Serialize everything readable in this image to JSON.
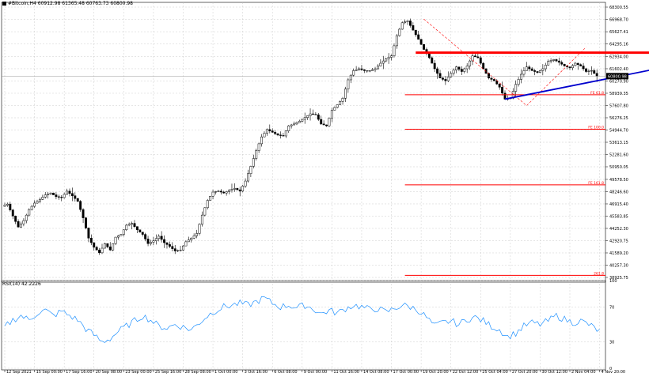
{
  "header": {
    "symbol": "#Bitcoin,H4",
    "ohlc": "60912.98 61365.48 60763.73 60800.98"
  },
  "rsi_panel": {
    "label": "RSI(14) 42.2226"
  },
  "colors": {
    "background": "#ffffff",
    "grid": "#c0c0c0",
    "candle": "#000000",
    "rsi_line": "#1e90ff",
    "resistance": "#ff0000",
    "trendline": "#0000cd",
    "fib": "#ff0000",
    "zigzag": "#ff0000"
  },
  "chart_data": [
    {
      "type": "candlestick",
      "title": "#Bitcoin,H4",
      "y_ticks": [
        "68300.55",
        "66968.70",
        "65627.41",
        "64295.16",
        "62934.00",
        "61602.40",
        "60270.90",
        "58939.35",
        "57607.80",
        "56276.25",
        "54944.70",
        "53613.15",
        "52281.60",
        "50950.05",
        "49578.50",
        "48246.60",
        "46915.40",
        "45583.85",
        "44252.30",
        "42920.75",
        "41589.20",
        "40257.30",
        "38925.75"
      ],
      "x_ticks": [
        "12 Sep 2021",
        "15 Sep 00:00",
        "17 Sep 16:00",
        "20 Sep 08:00",
        "23 Sep 00:00",
        "25 Sep 16:00",
        "28 Sep 08:00",
        "1 Oct 00:00",
        "3 Oct 16:00",
        "6 Oct 08:00",
        "9 Oct 00:00",
        "11 Oct 16:00",
        "14 Oct 08:00",
        "17 Oct 00:00",
        "19 Oct 20:00",
        "22 Oct 12:00",
        "25 Oct 04:00",
        "27 Oct 20:00",
        "30 Oct 12:00",
        "2 Nov 04:00",
        "4 Nov 20:00"
      ],
      "ylim": [
        38925.75,
        68300.55
      ],
      "current_price_label": "60800.98",
      "price_path": [
        [
          0,
          46650
        ],
        [
          2,
          46900
        ],
        [
          4,
          45600
        ],
        [
          6,
          44400
        ],
        [
          8,
          45100
        ],
        [
          10,
          46300
        ],
        [
          12,
          47000
        ],
        [
          14,
          47400
        ],
        [
          16,
          47900
        ],
        [
          18,
          48100
        ],
        [
          20,
          47700
        ],
        [
          22,
          47600
        ],
        [
          24,
          48300
        ],
        [
          26,
          47800
        ],
        [
          28,
          47200
        ],
        [
          30,
          45400
        ],
        [
          32,
          43200
        ],
        [
          34,
          42200
        ],
        [
          36,
          41600
        ],
        [
          38,
          42600
        ],
        [
          40,
          41900
        ],
        [
          42,
          43300
        ],
        [
          44,
          43600
        ],
        [
          46,
          44600
        ],
        [
          48,
          44800
        ],
        [
          50,
          44100
        ],
        [
          52,
          43600
        ],
        [
          54,
          42600
        ],
        [
          56,
          42900
        ],
        [
          58,
          43400
        ],
        [
          60,
          42700
        ],
        [
          62,
          42300
        ],
        [
          64,
          41800
        ],
        [
          66,
          41900
        ],
        [
          68,
          42800
        ],
        [
          70,
          43200
        ],
        [
          72,
          43700
        ],
        [
          74,
          45700
        ],
        [
          76,
          47300
        ],
        [
          78,
          48200
        ],
        [
          80,
          48300
        ],
        [
          82,
          48100
        ],
        [
          84,
          48400
        ],
        [
          86,
          48600
        ],
        [
          88,
          48300
        ],
        [
          90,
          49400
        ],
        [
          92,
          51000
        ],
        [
          94,
          52700
        ],
        [
          96,
          54200
        ],
        [
          98,
          55000
        ],
        [
          100,
          54700
        ],
        [
          102,
          54400
        ],
        [
          104,
          54300
        ],
        [
          106,
          55400
        ],
        [
          108,
          55600
        ],
        [
          110,
          55900
        ],
        [
          112,
          56300
        ],
        [
          114,
          56700
        ],
        [
          116,
          56600
        ],
        [
          118,
          55600
        ],
        [
          120,
          55400
        ],
        [
          122,
          57100
        ],
        [
          124,
          57700
        ],
        [
          126,
          58400
        ],
        [
          128,
          60400
        ],
        [
          130,
          61400
        ],
        [
          132,
          61600
        ],
        [
          134,
          61400
        ],
        [
          136,
          61400
        ],
        [
          138,
          61600
        ],
        [
          140,
          62200
        ],
        [
          142,
          62700
        ],
        [
          144,
          63000
        ],
        [
          146,
          65200
        ],
        [
          148,
          66600
        ],
        [
          150,
          66800
        ],
        [
          152,
          65800
        ],
        [
          154,
          64800
        ],
        [
          156,
          63700
        ],
        [
          158,
          62800
        ],
        [
          160,
          61600
        ],
        [
          162,
          60600
        ],
        [
          164,
          60300
        ],
        [
          166,
          61100
        ],
        [
          168,
          61800
        ],
        [
          170,
          61300
        ],
        [
          172,
          61900
        ],
        [
          174,
          63000
        ],
        [
          176,
          62800
        ],
        [
          178,
          61600
        ],
        [
          180,
          60600
        ],
        [
          182,
          60300
        ],
        [
          184,
          59600
        ],
        [
          186,
          58300
        ],
        [
          188,
          58400
        ],
        [
          190,
          59900
        ],
        [
          192,
          61000
        ],
        [
          194,
          61800
        ],
        [
          196,
          61400
        ],
        [
          198,
          61200
        ],
        [
          200,
          61600
        ],
        [
          202,
          62400
        ],
        [
          204,
          62600
        ],
        [
          206,
          62300
        ],
        [
          208,
          61900
        ],
        [
          210,
          61700
        ],
        [
          212,
          62200
        ],
        [
          214,
          61900
        ],
        [
          216,
          61300
        ],
        [
          218,
          61400
        ],
        [
          220,
          60800
        ]
      ],
      "horizontal_lines": [
        {
          "name": "resistance",
          "price": 63350
        },
        {
          "name": "fib-61.8",
          "price": 58780,
          "label": "FE 61.8"
        },
        {
          "name": "fib-100",
          "price": 55030,
          "label": "FE 100.0"
        },
        {
          "name": "fib-161.8",
          "price": 48990,
          "label": "FE 161.8"
        },
        {
          "name": "fib-261.8",
          "price": 39150,
          "label": "261.8"
        }
      ],
      "trendline": {
        "from": [
          185,
          58300
        ],
        "to": [
          248,
          62000
        ]
      },
      "zigzag": [
        [
          155,
          67000
        ],
        [
          193,
          57600
        ],
        [
          215,
          63950
        ]
      ]
    },
    {
      "type": "line",
      "title": "RSI(14) 42.2226",
      "y_ticks": [
        "100",
        "70",
        "30",
        "0"
      ],
      "ylim": [
        0,
        100
      ],
      "values": [
        [
          0,
          47
        ],
        [
          3,
          55
        ],
        [
          6,
          60
        ],
        [
          9,
          55
        ],
        [
          12,
          63
        ],
        [
          15,
          66
        ],
        [
          18,
          60
        ],
        [
          21,
          65
        ],
        [
          24,
          60
        ],
        [
          27,
          55
        ],
        [
          30,
          45
        ],
        [
          33,
          38
        ],
        [
          36,
          30
        ],
        [
          39,
          34
        ],
        [
          42,
          42
        ],
        [
          45,
          48
        ],
        [
          48,
          54
        ],
        [
          51,
          60
        ],
        [
          54,
          55
        ],
        [
          57,
          48
        ],
        [
          60,
          46
        ],
        [
          63,
          50
        ],
        [
          66,
          47
        ],
        [
          69,
          44
        ],
        [
          72,
          52
        ],
        [
          75,
          60
        ],
        [
          78,
          66
        ],
        [
          81,
          70
        ],
        [
          84,
          72
        ],
        [
          87,
          74
        ],
        [
          90,
          72
        ],
        [
          93,
          76
        ],
        [
          96,
          80
        ],
        [
          99,
          74
        ],
        [
          102,
          70
        ],
        [
          105,
          72
        ],
        [
          108,
          69
        ],
        [
          111,
          72
        ],
        [
          114,
          68
        ],
        [
          117,
          62
        ],
        [
          120,
          66
        ],
        [
          123,
          63
        ],
        [
          126,
          68
        ],
        [
          129,
          72
        ],
        [
          132,
          70
        ],
        [
          135,
          67
        ],
        [
          138,
          68
        ],
        [
          141,
          64
        ],
        [
          144,
          68
        ],
        [
          147,
          72
        ],
        [
          150,
          70
        ],
        [
          153,
          66
        ],
        [
          156,
          58
        ],
        [
          159,
          48
        ],
        [
          162,
          52
        ],
        [
          165,
          54
        ],
        [
          168,
          50
        ],
        [
          171,
          56
        ],
        [
          174,
          58
        ],
        [
          177,
          54
        ],
        [
          180,
          48
        ],
        [
          183,
          44
        ],
        [
          186,
          36
        ],
        [
          189,
          40
        ],
        [
          192,
          48
        ],
        [
          195,
          52
        ],
        [
          198,
          50
        ],
        [
          201,
          54
        ],
        [
          204,
          60
        ],
        [
          207,
          56
        ],
        [
          210,
          52
        ],
        [
          213,
          54
        ],
        [
          216,
          50
        ],
        [
          219,
          44
        ],
        [
          220,
          42
        ]
      ]
    }
  ]
}
